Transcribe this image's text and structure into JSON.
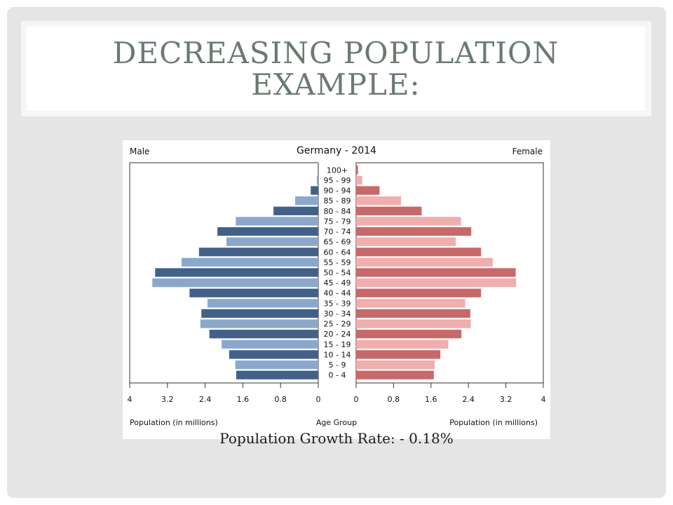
{
  "slide": {
    "title": "DECREASING POPULATION EXAMPLE:",
    "caption": "Population Growth Rate: - 0.18%"
  },
  "colors": {
    "male_dark": "#41618a",
    "male_light": "#8aa8cc",
    "female_dark": "#c96868",
    "female_light": "#f2adad",
    "title": "#6b7a70"
  },
  "chart_data": {
    "type": "bar",
    "orientation": "horizontal-pyramid",
    "title": "Germany - 2014",
    "left_label": "Male",
    "right_label": "Female",
    "xlabel_left": "Population (in millions)",
    "xlabel_center": "Age Group",
    "xlabel_right": "Population (in millions)",
    "xlim": [
      0,
      4
    ],
    "x_ticks": [
      "4",
      "3.2",
      "2.4",
      "1.6",
      "0.8",
      "0",
      "0",
      "0.8",
      "1.6",
      "2.4",
      "3.2",
      "4"
    ],
    "categories": [
      "0 - 4",
      "5 - 9",
      "10 - 14",
      "15 - 19",
      "20 - 24",
      "25 - 29",
      "30 - 34",
      "35 - 39",
      "40 - 44",
      "45 - 49",
      "50 - 54",
      "55 - 59",
      "60 - 64",
      "65 - 69",
      "70 - 74",
      "75 - 79",
      "80 - 84",
      "85 - 89",
      "90 - 94",
      "95 - 99",
      "100+"
    ],
    "series": [
      {
        "name": "Male",
        "values": [
          1.74,
          1.76,
          1.89,
          2.05,
          2.31,
          2.5,
          2.48,
          2.35,
          2.73,
          3.52,
          3.46,
          2.9,
          2.53,
          1.95,
          2.14,
          1.75,
          0.95,
          0.49,
          0.16,
          0.03,
          0.01
        ]
      },
      {
        "name": "Female",
        "values": [
          1.66,
          1.68,
          1.8,
          1.97,
          2.25,
          2.45,
          2.44,
          2.33,
          2.67,
          3.42,
          3.41,
          2.92,
          2.67,
          2.13,
          2.46,
          2.24,
          1.4,
          0.96,
          0.5,
          0.13,
          0.04
        ]
      }
    ],
    "grid": false
  }
}
